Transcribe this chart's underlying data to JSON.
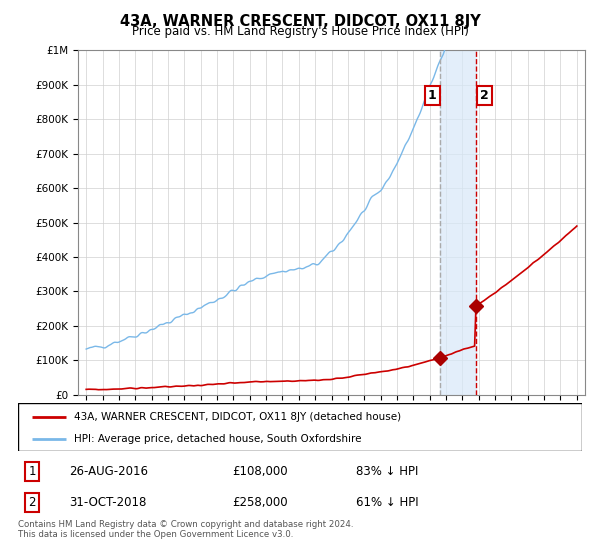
{
  "title": "43A, WARNER CRESCENT, DIDCOT, OX11 8JY",
  "subtitle": "Price paid vs. HM Land Registry's House Price Index (HPI)",
  "ylim": [
    0,
    1000000
  ],
  "yticks": [
    0,
    100000,
    200000,
    300000,
    400000,
    500000,
    600000,
    700000,
    800000,
    900000,
    1000000
  ],
  "ytick_labels": [
    "£0",
    "£100K",
    "£200K",
    "£300K",
    "£400K",
    "£500K",
    "£600K",
    "£700K",
    "£800K",
    "£900K",
    "£1M"
  ],
  "hpi_color": "#7ab8e8",
  "price_color": "#cc0000",
  "marker_color": "#aa0000",
  "sale1_year": 2016.65,
  "sale1_price": 108000,
  "sale2_year": 2018.83,
  "sale2_price": 258000,
  "vline1_color": "#aaaaaa",
  "vline2_color": "#cc0000",
  "shade_color": "#d8e8f8",
  "legend_line1": "43A, WARNER CRESCENT, DIDCOT, OX11 8JY (detached house)",
  "legend_line2": "HPI: Average price, detached house, South Oxfordshire",
  "table_row1": [
    "1",
    "26-AUG-2016",
    "£108,000",
    "83% ↓ HPI"
  ],
  "table_row2": [
    "2",
    "31-OCT-2018",
    "£258,000",
    "61% ↓ HPI"
  ],
  "footnote": "Contains HM Land Registry data © Crown copyright and database right 2024.\nThis data is licensed under the Open Government Licence v3.0.",
  "xmin": 1994.5,
  "xmax": 2025.5,
  "hpi_seed": 42,
  "price_seed": 99
}
